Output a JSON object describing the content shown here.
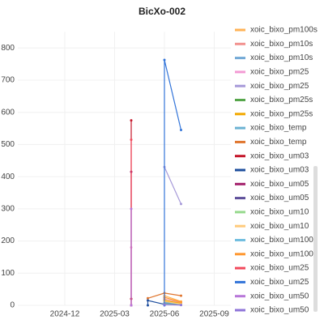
{
  "chart_data": {
    "type": "line",
    "title": "BicXo-002",
    "xlim": [
      "2024-10",
      "2025-10"
    ],
    "xticks": [
      "2024-12",
      "2025-03",
      "2025-06",
      "2025-09"
    ],
    "ylim": [
      0,
      850
    ],
    "yticks": [
      0,
      100,
      200,
      300,
      400,
      500,
      600,
      700,
      800
    ],
    "grid": true,
    "series": [
      {
        "name": "xoic_bixo_pm100s",
        "color": "#ffb357",
        "x": [
          "2025-06",
          "2025-07"
        ],
        "values": [
          30,
          12
        ]
      },
      {
        "name": "xoic_bixo_pm10s",
        "color": "#f2928f",
        "x": [
          "2025-06",
          "2025-07"
        ],
        "values": [
          20,
          8
        ]
      },
      {
        "name": "xoic_bixo_pm10s",
        "color": "#73a9d6",
        "x": [
          "2025-06",
          "2025-07"
        ],
        "values": [
          10,
          5
        ]
      },
      {
        "name": "xoic_bixo_pm25",
        "color": "#f39bd4",
        "x": [
          "2025-04",
          "2025-04",
          "2025-04"
        ],
        "values": [
          0,
          180,
          0
        ]
      },
      {
        "name": "xoic_bixo_pm25",
        "color": "#a79ad9",
        "x": [
          "2025-06",
          "2025-07"
        ],
        "values": [
          430,
          315
        ]
      },
      {
        "name": "xoic_bixo_pm25s",
        "color": "#56a64b",
        "x": [
          "2025-06",
          "2025-07"
        ],
        "values": [
          6,
          3
        ]
      },
      {
        "name": "xoic_bixo_pm25s",
        "color": "#f2a900",
        "x": [
          "2025-06",
          "2025-07"
        ],
        "values": [
          15,
          6
        ]
      },
      {
        "name": "xoic_bixo_temp",
        "color": "#6cb3d3",
        "x": [
          "2025-06",
          "2025-07"
        ],
        "values": [
          8,
          4
        ]
      },
      {
        "name": "xoic_bixo_temp",
        "color": "#e0752d",
        "x": [
          "2025-05",
          "2025-06",
          "2025-07"
        ],
        "values": [
          22,
          38,
          30
        ]
      },
      {
        "name": "xoic_bixo_um03",
        "color": "#c4162a",
        "x": [
          "2025-04",
          "2025-04",
          "2025-04"
        ],
        "values": [
          0,
          575,
          20
        ]
      },
      {
        "name": "xoic_bixo_um03",
        "color": "#1f4f9e",
        "x": [
          "2025-05",
          "2025-05",
          "2025-06"
        ],
        "values": [
          0,
          15,
          3
        ]
      },
      {
        "name": "xoic_bixo_um05",
        "color": "#a3206b",
        "x": [
          "2025-04",
          "2025-04",
          "2025-04"
        ],
        "values": [
          0,
          415,
          0
        ]
      },
      {
        "name": "xoic_bixo_um05",
        "color": "#5e4f9a",
        "x": [
          "2025-06",
          "2025-07"
        ],
        "values": [
          5,
          2
        ]
      },
      {
        "name": "xoic_bixo_um10",
        "color": "#96d98d",
        "x": [
          "2025-06",
          "2025-07"
        ],
        "values": [
          4,
          2
        ]
      },
      {
        "name": "xoic_bixo_um10",
        "color": "#ffcb7d",
        "x": [
          "2025-06",
          "2025-07"
        ],
        "values": [
          12,
          4
        ]
      },
      {
        "name": "xoic_bixo_um100",
        "color": "#73bfe0",
        "x": [
          "2025-06",
          "2025-07"
        ],
        "values": [
          3,
          1
        ]
      },
      {
        "name": "xoic_bixo_um100",
        "color": "#ff9830",
        "x": [
          "2025-06",
          "2025-07"
        ],
        "values": [
          25,
          10
        ]
      },
      {
        "name": "xoic_bixo_um25",
        "color": "#f2495c",
        "x": [
          "2025-04",
          "2025-04",
          "2025-04"
        ],
        "values": [
          0,
          515,
          0
        ]
      },
      {
        "name": "xoic_bixo_um25",
        "color": "#3274d9",
        "x": [
          "2025-06",
          "2025-06",
          "2025-07"
        ],
        "values": [
          0,
          763,
          545
        ]
      },
      {
        "name": "xoic_bixo_um50",
        "color": "#b877d9",
        "x": [
          "2025-04",
          "2025-04",
          "2025-04"
        ],
        "values": [
          0,
          300,
          0
        ]
      },
      {
        "name": "xoic_bixo_um50",
        "color": "#8f74d8",
        "x": [
          "2025-06",
          "2025-07"
        ],
        "values": [
          2,
          1
        ]
      }
    ]
  }
}
